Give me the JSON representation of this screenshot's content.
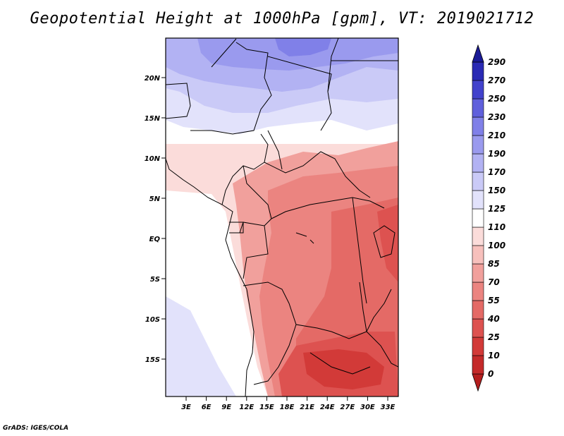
{
  "title": "Geopotential Height at 1000hPa [gpm], VT: 2019021712",
  "footer": "GrADS: IGES/COLA",
  "map": {
    "lat_labels": [
      "20N",
      "15N",
      "10N",
      "5N",
      "EQ",
      "5S",
      "10S",
      "15S"
    ],
    "lon_labels": [
      "3E",
      "6E",
      "9E",
      "12E",
      "15E",
      "18E",
      "21E",
      "24E",
      "27E",
      "30E",
      "33E"
    ]
  },
  "colorbar": {
    "levels": [
      "0",
      "10",
      "25",
      "40",
      "55",
      "70",
      "85",
      "100",
      "110",
      "125",
      "150",
      "170",
      "190",
      "210",
      "230",
      "250",
      "270",
      "290"
    ],
    "colors": [
      "#b41e1e",
      "#c42a2a",
      "#d23a38",
      "#dd5250",
      "#e46a66",
      "#eb8480",
      "#f1a09c",
      "#f7c0bc",
      "#fbdcda",
      "#ffffff",
      "#e2e2fb",
      "#cacaf7",
      "#b2b2f3",
      "#9a9aee",
      "#8080e8",
      "#6060dc",
      "#4242cc",
      "#2a2ab4",
      "#1a1a96"
    ]
  }
}
